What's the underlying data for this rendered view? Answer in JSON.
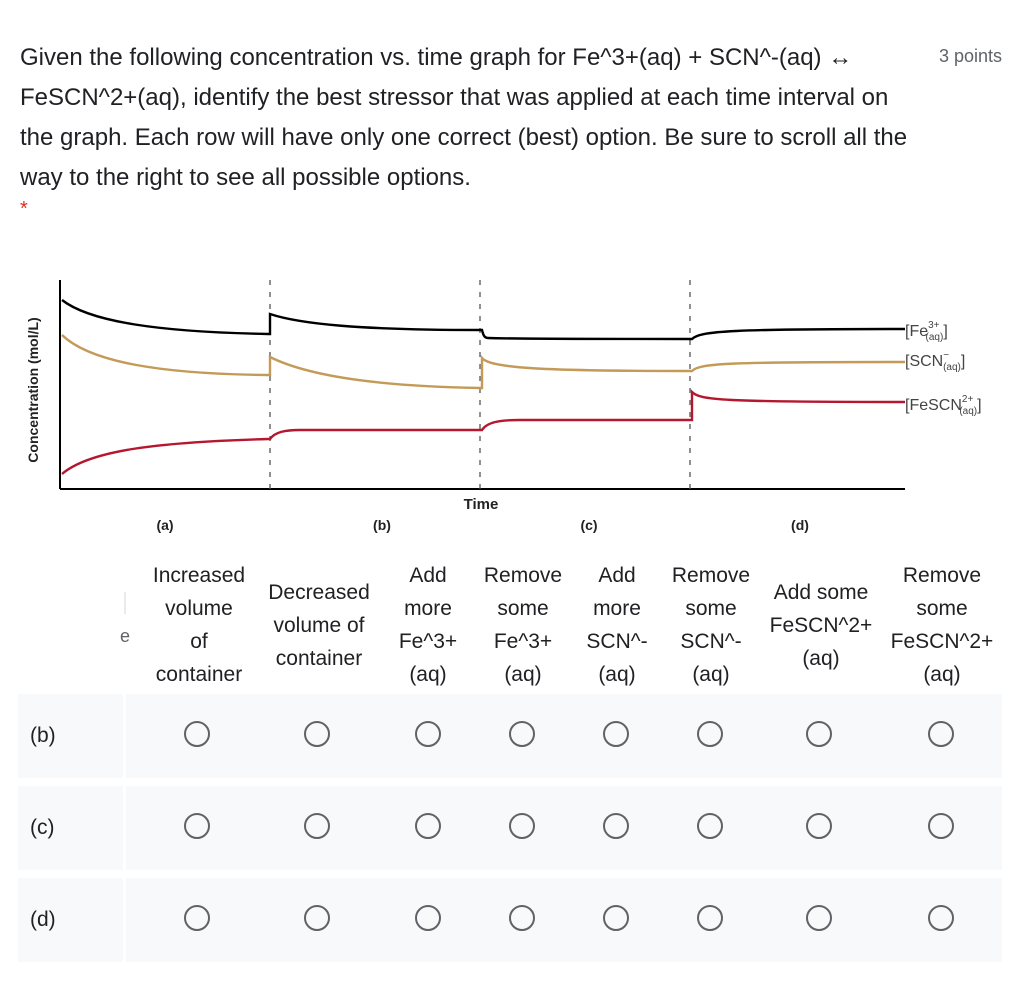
{
  "question": {
    "text": "Given the following concentration vs. time graph for Fe^3+(aq) + SCN^-(aq) ↔ FeSCN^2+(aq), identify the best stressor that was applied at each time interval on the graph. Each row will have only one correct (best) option. Be sure to scroll all the way to the right to see all possible options.",
    "points": "3 points",
    "required_mark": "*"
  },
  "chart_data": {
    "type": "line",
    "ylabel": "Concentration (mol/L)",
    "xlabel": "Time",
    "interval_labels": [
      "(a)",
      "(b)",
      "(c)",
      "(d)"
    ],
    "series": [
      {
        "name": "[Fe3+(aq)]",
        "color": "#000000"
      },
      {
        "name": "[SCN-(aq)]",
        "color": "#c49a58"
      },
      {
        "name": "[FeSCN2+(aq)]",
        "color": "#b5172e"
      }
    ],
    "legend_text": {
      "fe_base": "[Fe",
      "fe_sup": "3+",
      "fe_sub": "(aq)",
      "scn_base": "[SCN",
      "scn_sup": "−",
      "scn_sub": "(aq)",
      "fescn_base": "[FeSCN",
      "fescn_sup": "2+",
      "fescn_sub": "(aq)",
      "close": "]"
    }
  },
  "grid": {
    "stub_text": "e",
    "columns": [
      "Increased\nvolume\nof\ncontainer",
      "Decreased\nvolume of\ncontainer",
      "Add\nmore\nFe^3+\n(aq)",
      "Remove\nsome\nFe^3+\n(aq)",
      "Add\nmore\nSCN^-\n(aq)",
      "Remove\nsome\nSCN^-\n(aq)",
      "Add some\nFeSCN^2+\n(aq)",
      "Remove\nsome\nFeSCN^2+\n(aq)"
    ],
    "rows": [
      "(b)",
      "(c)",
      "(d)"
    ]
  }
}
